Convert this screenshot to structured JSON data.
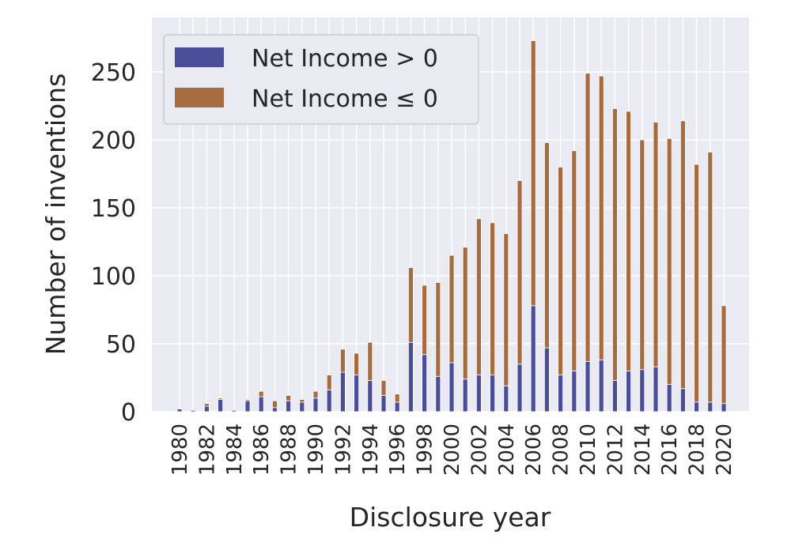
{
  "chart_data": {
    "type": "bar",
    "stacked": true,
    "xlabel": "Disclosure year",
    "ylabel": "Number of inventions",
    "ylim": [
      0,
      290
    ],
    "yticks": [
      0,
      50,
      100,
      150,
      200,
      250
    ],
    "xticks": [
      "1980",
      "1982",
      "1984",
      "1986",
      "1988",
      "1990",
      "1992",
      "1994",
      "1996",
      "1998",
      "2000",
      "2002",
      "2004",
      "2006",
      "2008",
      "2010",
      "2012",
      "2014",
      "2016",
      "2018",
      "2020"
    ],
    "grid": true,
    "legend_position": "top-left",
    "categories": [
      1980,
      1981,
      1982,
      1983,
      1984,
      1985,
      1986,
      1987,
      1988,
      1989,
      1990,
      1991,
      1992,
      1993,
      1994,
      1995,
      1996,
      1997,
      1998,
      1999,
      2000,
      2001,
      2002,
      2003,
      2004,
      2005,
      2006,
      2007,
      2008,
      2009,
      2010,
      2011,
      2012,
      2013,
      2014,
      2015,
      2016,
      2017,
      2018,
      2019,
      2020
    ],
    "series": [
      {
        "name": "Net Income > 0",
        "color": "#4a4e9a",
        "values": [
          2,
          1,
          4,
          9,
          1,
          8,
          11,
          3,
          8,
          7,
          10,
          16,
          29,
          27,
          23,
          12,
          7,
          51,
          42,
          26,
          36,
          24,
          27,
          27,
          19,
          35,
          78,
          47,
          27,
          30,
          37,
          38,
          23,
          30,
          31,
          33,
          20,
          17,
          7,
          7,
          6
        ]
      },
      {
        "name": "Net Income ≤ 0",
        "color": "#a66b3f",
        "values": [
          0,
          0,
          2,
          1,
          0,
          1,
          4,
          5,
          4,
          2,
          5,
          11,
          17,
          16,
          28,
          11,
          6,
          55,
          51,
          69,
          79,
          97,
          115,
          112,
          112,
          135,
          195,
          151,
          153,
          162,
          212,
          209,
          200,
          191,
          169,
          180,
          181,
          197,
          175,
          184,
          72
        ]
      }
    ]
  }
}
